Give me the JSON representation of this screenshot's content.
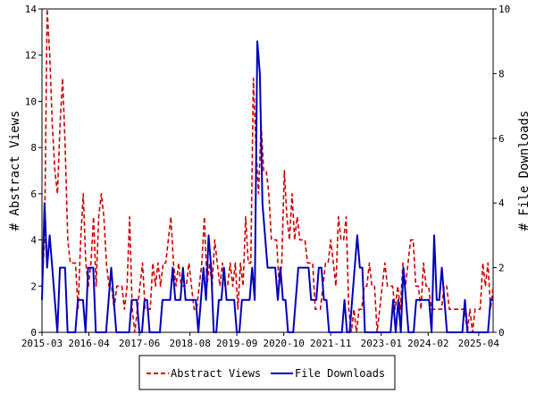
{
  "chart_data": {
    "type": "line",
    "xlabel": "",
    "ylabel": "# Abstract Views",
    "y2label": "# File Downloads",
    "ylim": [
      0,
      14
    ],
    "y2lim": [
      0,
      10
    ],
    "yticks": [
      0,
      2,
      4,
      6,
      8,
      10,
      12,
      14
    ],
    "y2ticks": [
      0,
      2,
      4,
      6,
      8,
      10
    ],
    "x_range": [
      "2015-03",
      "2025-08"
    ],
    "x_ticks": [
      "2015-03",
      "2016-04",
      "2017-06",
      "2018-08",
      "2019-09",
      "2020-10",
      "2021-11",
      "2023-01",
      "2024-02",
      "2025-04"
    ],
    "legend_position": "bottom-center",
    "series": [
      {
        "name": "Abstract Views",
        "axis": "left",
        "color": "#cc0000",
        "style": "dashed",
        "values": [
          2,
          4,
          14,
          12,
          9,
          7,
          6,
          9,
          11,
          8,
          4,
          3,
          3,
          3,
          1,
          4,
          6,
          3,
          2,
          3,
          5,
          2,
          5,
          6,
          5,
          3,
          2,
          2,
          1,
          2,
          2,
          2,
          1,
          2,
          5,
          1,
          0,
          1,
          2,
          3,
          1,
          1,
          1,
          3,
          2,
          3,
          2,
          3,
          3,
          4,
          5,
          3,
          2,
          3,
          2,
          2,
          2,
          3,
          2,
          1,
          1,
          2,
          3,
          5,
          2,
          3,
          2,
          4,
          3,
          2,
          3,
          2,
          2,
          3,
          2,
          3,
          1,
          3,
          2,
          5,
          3,
          3,
          11,
          8,
          6,
          9,
          7,
          7,
          6,
          4,
          4,
          4,
          2,
          3,
          7,
          5,
          4,
          6,
          4,
          5,
          4,
          4,
          4,
          3,
          3,
          3,
          1,
          1,
          1,
          2,
          3,
          3,
          4,
          3,
          2,
          5,
          4,
          4,
          5,
          1,
          0,
          1,
          0,
          1,
          1,
          2,
          2,
          3,
          2,
          2,
          0,
          1,
          2,
          3,
          2,
          2,
          2,
          1,
          2,
          1,
          3,
          2,
          3,
          4,
          4,
          2,
          2,
          1,
          3,
          2,
          2,
          1,
          1,
          1,
          1,
          1,
          2,
          2,
          1,
          1,
          1,
          1,
          1,
          1,
          1,
          0,
          1,
          0,
          1,
          1,
          1,
          3,
          2,
          3,
          1,
          2
        ]
      },
      {
        "name": "File Downloads",
        "axis": "right",
        "color": "#0000bb",
        "style": "solid",
        "values": [
          1,
          4,
          2,
          3,
          2,
          1,
          0,
          2,
          2,
          2,
          0,
          0,
          0,
          0,
          1,
          1,
          1,
          0,
          2,
          2,
          2,
          0,
          0,
          0,
          0,
          0,
          1,
          2,
          1,
          0,
          0,
          0,
          0,
          0,
          0,
          1,
          1,
          1,
          0,
          0,
          1,
          1,
          0,
          0,
          0,
          0,
          0,
          1,
          1,
          1,
          1,
          2,
          1,
          1,
          1,
          2,
          1,
          1,
          1,
          1,
          1,
          0,
          1,
          2,
          1,
          3,
          2,
          0,
          0,
          1,
          1,
          2,
          1,
          1,
          1,
          1,
          0,
          0,
          1,
          1,
          1,
          1,
          2,
          1,
          9,
          8,
          4,
          3,
          2,
          2,
          2,
          2,
          1,
          2,
          1,
          1,
          0,
          0,
          0,
          1,
          2,
          2,
          2,
          2,
          2,
          1,
          1,
          1,
          2,
          2,
          1,
          1,
          0,
          0,
          0,
          0,
          0,
          0,
          1,
          0,
          0,
          1,
          2,
          3,
          2,
          2,
          0,
          0,
          0,
          0,
          0,
          0,
          0,
          0,
          0,
          0,
          0,
          1,
          0,
          1,
          0,
          2,
          1,
          0,
          0,
          0,
          1,
          1,
          1,
          1,
          1,
          1,
          0,
          3,
          1,
          1,
          2,
          1,
          0,
          0,
          0,
          0,
          0,
          0,
          0,
          1,
          0,
          0,
          0,
          0,
          0,
          0,
          0,
          0,
          0,
          1,
          1
        ]
      }
    ]
  }
}
